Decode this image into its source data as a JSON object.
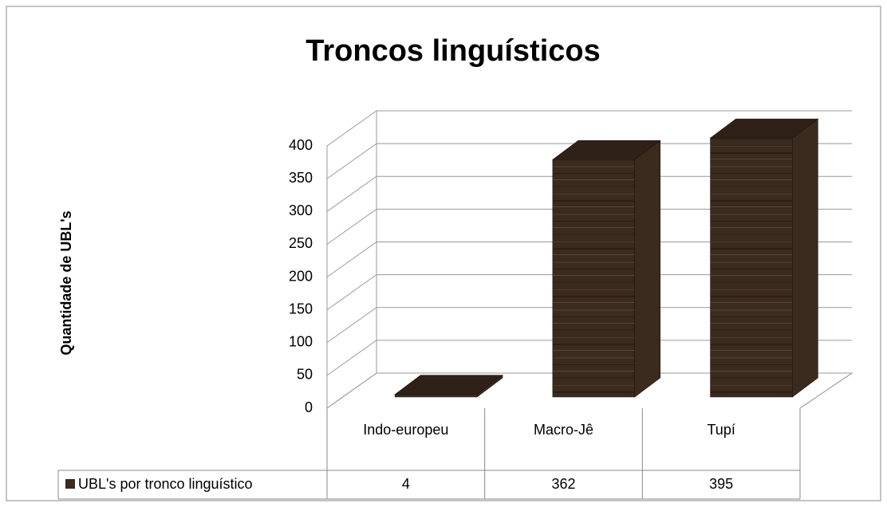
{
  "chart_data": {
    "type": "bar3d",
    "title": "Troncos linguísticos",
    "y_label": "Quantidade de UBL's",
    "categories": [
      "Indo-europeu",
      "Macro-Jê",
      "Tupí"
    ],
    "series": [
      {
        "name": "UBL's por tronco linguístico",
        "color": "#3b2a1e",
        "values": [
          4,
          362,
          395
        ]
      }
    ],
    "ylim": [
      0,
      400
    ],
    "yticks": [
      0,
      50,
      100,
      150,
      200,
      250,
      300,
      350,
      400
    ],
    "grid": true,
    "data_table": true
  }
}
